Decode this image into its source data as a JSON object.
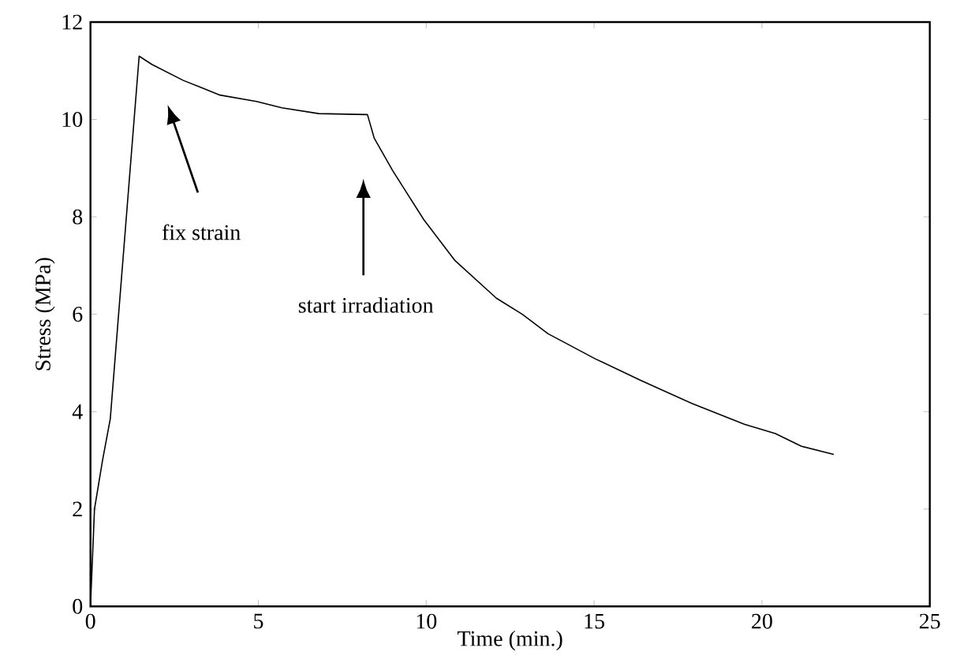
{
  "chart_data": {
    "type": "line",
    "xlabel": "Time (min.)",
    "ylabel": "Stress (MPa)",
    "xlim": [
      0,
      25
    ],
    "ylim": [
      0,
      12
    ],
    "xticks": [
      0,
      5,
      10,
      15,
      20,
      25
    ],
    "yticks": [
      0,
      2,
      4,
      6,
      8,
      10,
      12
    ],
    "grid": false,
    "color": "#000000",
    "x": [
      0,
      0.12,
      0.36,
      0.59,
      1.45,
      1.83,
      2.77,
      3.86,
      4.95,
      5.7,
      6.8,
      8.25,
      8.45,
      9.0,
      9.93,
      10.86,
      12.09,
      12.86,
      13.63,
      15.02,
      16.4,
      17.94,
      19.48,
      20.4,
      21.17,
      22.14
    ],
    "values": [
      0,
      2.0,
      3.0,
      3.85,
      11.3,
      11.13,
      10.8,
      10.5,
      10.37,
      10.24,
      10.12,
      10.1,
      9.62,
      8.95,
      7.94,
      7.1,
      6.33,
      6.0,
      5.6,
      5.09,
      4.64,
      4.16,
      3.74,
      3.55,
      3.29,
      3.12
    ],
    "annotations": [
      "fix strain",
      "start irradiation"
    ]
  }
}
